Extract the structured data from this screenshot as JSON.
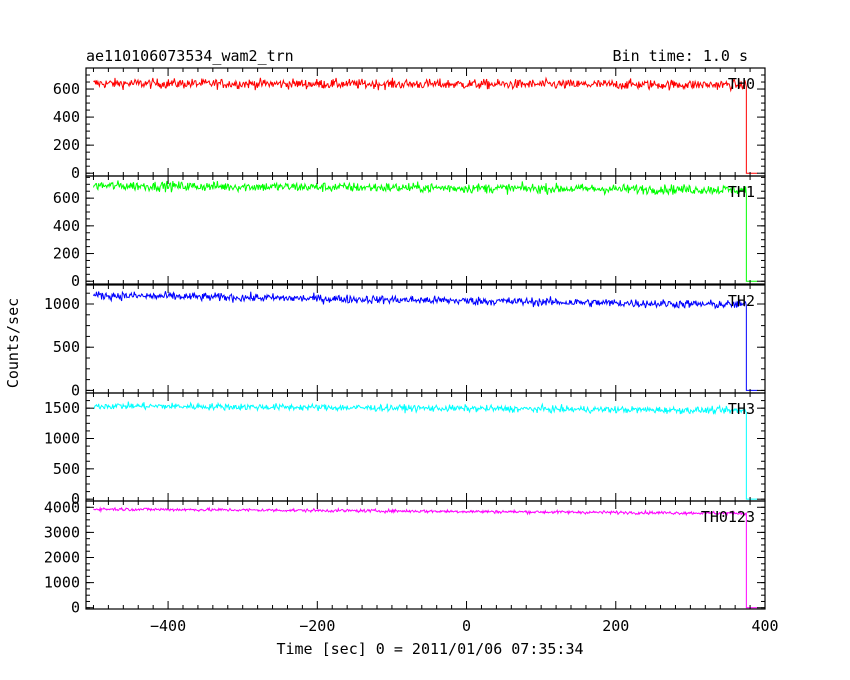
{
  "header": {
    "title": "ae110106073534_wam2_trn",
    "bin_time": "Bin time: 1.0 s"
  },
  "chart_data": {
    "type": "line",
    "title": "ae110106073534_wam2_trn",
    "subtitle": "Bin time: 1.0 s",
    "xlabel": "Time [sec] 0 = 2011/01/06 07:35:34",
    "ylabel": "Counts/sec",
    "xlim": [
      -510,
      400
    ],
    "x_ticks": [
      -400,
      -200,
      0,
      200,
      400
    ],
    "x_tick_labels": [
      "−400",
      "−200",
      "0",
      "200",
      "400"
    ],
    "data_x_range": [
      -500,
      375
    ],
    "drop_x": 375,
    "end_x": 390,
    "grid": false,
    "panels": [
      {
        "name": "TH0",
        "color": "#ff0000",
        "ylim": [
          -20,
          750
        ],
        "y_ticks": [
          0,
          200,
          400,
          600
        ],
        "y_tick_labels": [
          "0",
          "200",
          "400",
          "600"
        ],
        "start_level": 640,
        "end_level": 630,
        "noise": 25
      },
      {
        "name": "TH1",
        "color": "#00ff00",
        "ylim": [
          -20,
          760
        ],
        "y_ticks": [
          0,
          200,
          400,
          600
        ],
        "y_tick_labels": [
          "0",
          "200",
          "400",
          "600"
        ],
        "start_level": 690,
        "end_level": 660,
        "noise": 25
      },
      {
        "name": "TH2",
        "color": "#0000ff",
        "ylim": [
          -30,
          1220
        ],
        "y_ticks": [
          0,
          500,
          1000
        ],
        "y_tick_labels": [
          "0",
          "500",
          "1000"
        ],
        "start_level": 1100,
        "end_level": 990,
        "noise": 35
      },
      {
        "name": "TH3",
        "color": "#00ffff",
        "ylim": [
          -30,
          1750
        ],
        "y_ticks": [
          0,
          500,
          1000,
          1500
        ],
        "y_tick_labels": [
          "0",
          "500",
          "1000",
          "1500"
        ],
        "start_level": 1540,
        "end_level": 1460,
        "noise": 40
      },
      {
        "name": "TH0123",
        "color": "#ff00ff",
        "ylim": [
          -50,
          4250
        ],
        "y_ticks": [
          0,
          1000,
          2000,
          3000,
          4000
        ],
        "y_tick_labels": [
          "0",
          "1000",
          "2000",
          "3000",
          "4000"
        ],
        "start_level": 3930,
        "end_level": 3760,
        "noise": 45
      }
    ]
  }
}
